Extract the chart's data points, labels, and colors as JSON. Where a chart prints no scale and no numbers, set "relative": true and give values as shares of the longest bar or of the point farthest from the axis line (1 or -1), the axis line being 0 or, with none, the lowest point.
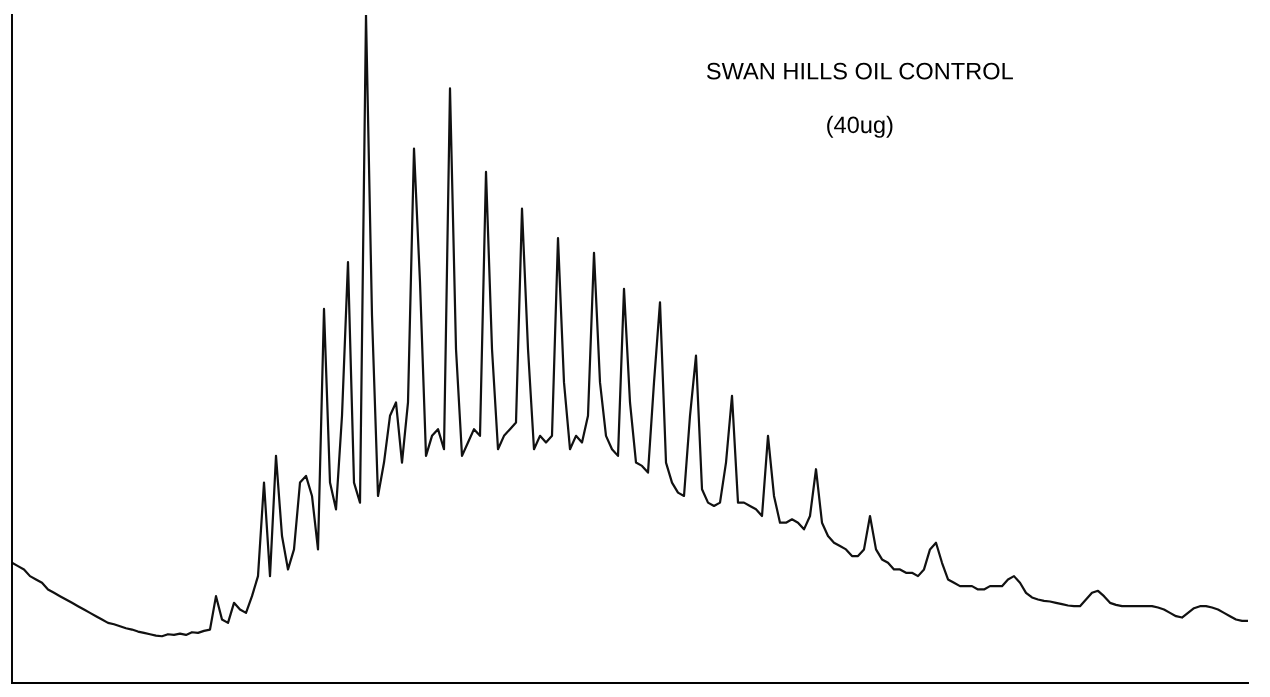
{
  "chart_data": {
    "type": "line",
    "title": "SWAN HILLS OIL CONTROL",
    "subtitle": "(40ug)",
    "relative": true,
    "legend": false,
    "marker": "none",
    "line_style": "solid",
    "categories": [
      null,
      null,
      null,
      null,
      null,
      null,
      null,
      null,
      null,
      null,
      null,
      null,
      null,
      null,
      null,
      null,
      null,
      null,
      null,
      null,
      null,
      null,
      null,
      null,
      null,
      null,
      null,
      null,
      null,
      null,
      null,
      null,
      null,
      null,
      null,
      null,
      null,
      null,
      null,
      null,
      null,
      null,
      null,
      null,
      null,
      null,
      null,
      null,
      null,
      null,
      null,
      null,
      null,
      null,
      null,
      null,
      null,
      null,
      null,
      null,
      null,
      null,
      null,
      null,
      null,
      null,
      null,
      null,
      null,
      null,
      null,
      null,
      null,
      null,
      null,
      null,
      null,
      null,
      null,
      null,
      null,
      null,
      null,
      null,
      null,
      null,
      null,
      null,
      null,
      null,
      null,
      null,
      null,
      null,
      null,
      null,
      null,
      null,
      null,
      null,
      null,
      null,
      null,
      null,
      null,
      null,
      null,
      null,
      null,
      null,
      null,
      null,
      null,
      null,
      null,
      null,
      null,
      null,
      null,
      null,
      null,
      null,
      null,
      null,
      null,
      null,
      null,
      null,
      null,
      null,
      null,
      null,
      null,
      null,
      null,
      null,
      null,
      null,
      null,
      null,
      null,
      null,
      null,
      null,
      null,
      null,
      null,
      null,
      null,
      null,
      null,
      null,
      null,
      null,
      null,
      null,
      null,
      null,
      null,
      null,
      null,
      null,
      null,
      null,
      null,
      null,
      null,
      null,
      null,
      null,
      null,
      null,
      null,
      null,
      null,
      null,
      null,
      null,
      null,
      null,
      null,
      null,
      null,
      null,
      null,
      null,
      null,
      null,
      null,
      null,
      null,
      null,
      null,
      null,
      null,
      null,
      null,
      null,
      null,
      null,
      null,
      null,
      null,
      null,
      null,
      null,
      null
    ],
    "series": [
      {
        "color": "#111111",
        "values": [
          0.18,
          0.175,
          0.17,
          0.16,
          0.155,
          0.15,
          0.14,
          0.135,
          0.13,
          0.125,
          0.12,
          0.115,
          0.11,
          0.105,
          0.1,
          0.095,
          0.09,
          0.088,
          0.085,
          0.082,
          0.08,
          0.077,
          0.075,
          0.073,
          0.071,
          0.07,
          0.073,
          0.072,
          0.074,
          0.072,
          0.076,
          0.075,
          0.078,
          0.08,
          0.13,
          0.095,
          0.09,
          0.12,
          0.11,
          0.105,
          0.13,
          0.16,
          0.3,
          0.16,
          0.34,
          0.22,
          0.17,
          0.2,
          0.3,
          0.31,
          0.28,
          0.2,
          0.56,
          0.3,
          0.26,
          0.4,
          0.63,
          0.3,
          0.27,
          1.0,
          0.55,
          0.28,
          0.33,
          0.4,
          0.42,
          0.33,
          0.42,
          0.8,
          0.6,
          0.34,
          0.37,
          0.38,
          0.35,
          0.89,
          0.5,
          0.34,
          0.36,
          0.38,
          0.37,
          0.765,
          0.5,
          0.35,
          0.37,
          0.38,
          0.39,
          0.71,
          0.5,
          0.35,
          0.37,
          0.36,
          0.37,
          0.666,
          0.45,
          0.35,
          0.37,
          0.36,
          0.4,
          0.644,
          0.45,
          0.37,
          0.35,
          0.34,
          0.59,
          0.42,
          0.33,
          0.325,
          0.315,
          0.45,
          0.57,
          0.33,
          0.3,
          0.285,
          0.28,
          0.4,
          0.49,
          0.29,
          0.27,
          0.265,
          0.27,
          0.33,
          0.43,
          0.27,
          0.27,
          0.265,
          0.26,
          0.25,
          0.37,
          0.28,
          0.24,
          0.24,
          0.245,
          0.24,
          0.23,
          0.25,
          0.32,
          0.24,
          0.22,
          0.21,
          0.205,
          0.2,
          0.19,
          0.19,
          0.2,
          0.25,
          0.2,
          0.185,
          0.18,
          0.17,
          0.17,
          0.165,
          0.165,
          0.16,
          0.17,
          0.2,
          0.21,
          0.18,
          0.155,
          0.15,
          0.145,
          0.145,
          0.145,
          0.14,
          0.14,
          0.145,
          0.145,
          0.145,
          0.155,
          0.16,
          0.15,
          0.135,
          0.128,
          0.125,
          0.123,
          0.122,
          0.12,
          0.118,
          0.116,
          0.115,
          0.115,
          0.125,
          0.135,
          0.138,
          0.13,
          0.12,
          0.117,
          0.115,
          0.115,
          0.115,
          0.115,
          0.115,
          0.115,
          0.113,
          0.11,
          0.105,
          0.1,
          0.098,
          0.105,
          0.112,
          0.115,
          0.115,
          0.113,
          0.11,
          0.105,
          0.1,
          0.095,
          0.093,
          0.093
        ]
      }
    ]
  }
}
